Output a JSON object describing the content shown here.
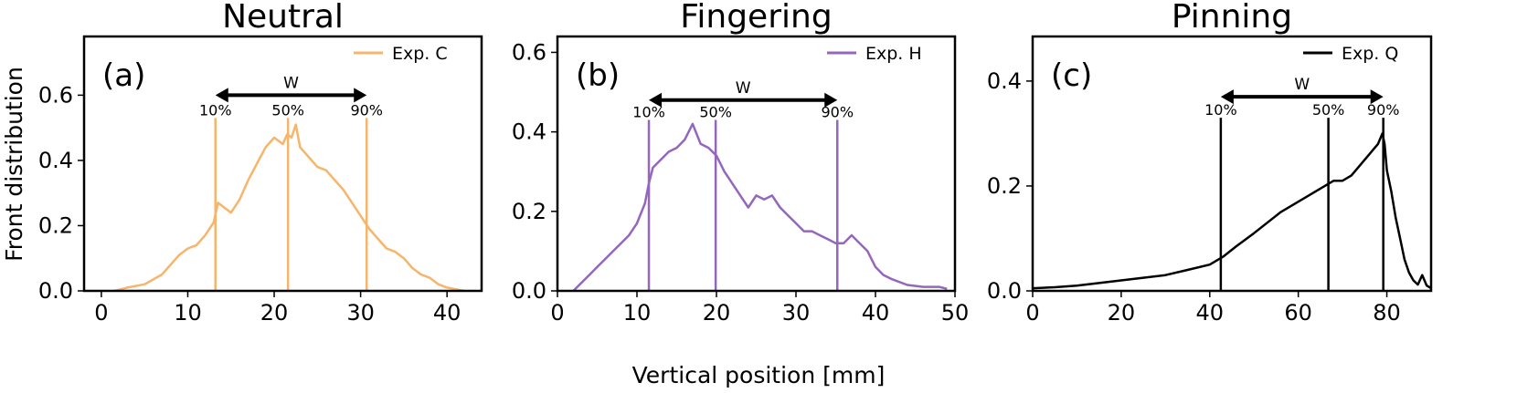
{
  "figure": {
    "ylabel": "Front distribution",
    "xlabel": "Vertical position [mm]"
  },
  "chart_data": [
    {
      "type": "line",
      "title": "Neutral",
      "panel_label": "(a)",
      "xlim": [
        -2,
        44
      ],
      "ylim": [
        0,
        0.78
      ],
      "xticks": [
        "0",
        "10",
        "20",
        "30",
        "40"
      ],
      "xtick_values": [
        0,
        10,
        20,
        30,
        40
      ],
      "yticks": [
        "0.0",
        "0.2",
        "0.4",
        "0.6"
      ],
      "ytick_values": [
        0,
        0.2,
        0.4,
        0.6
      ],
      "series": [
        {
          "name": "Exp. C",
          "color": "#f7b56b",
          "x": [
            1.5,
            3,
            5,
            7,
            8,
            9,
            10,
            11,
            12,
            13,
            13.5,
            14,
            15,
            16,
            17,
            18,
            19,
            20,
            21,
            21.5,
            22,
            22.5,
            23,
            24,
            25,
            26,
            27,
            28,
            29,
            30,
            31,
            32,
            33,
            34,
            35,
            36,
            37,
            38,
            39,
            40,
            41,
            42
          ],
          "y": [
            0.0,
            0.01,
            0.02,
            0.05,
            0.08,
            0.11,
            0.13,
            0.14,
            0.17,
            0.21,
            0.27,
            0.26,
            0.24,
            0.28,
            0.34,
            0.39,
            0.44,
            0.47,
            0.45,
            0.48,
            0.47,
            0.51,
            0.44,
            0.41,
            0.38,
            0.37,
            0.34,
            0.31,
            0.27,
            0.23,
            0.19,
            0.16,
            0.13,
            0.12,
            0.1,
            0.07,
            0.05,
            0.04,
            0.02,
            0.01,
            0.005,
            0.0
          ]
        }
      ],
      "markers": [
        {
          "label": "10%",
          "x": 13.2
        },
        {
          "label": "50%",
          "x": 21.6
        },
        {
          "label": "90%",
          "x": 30.7
        }
      ],
      "width_label": "W",
      "arrow_y": 0.6,
      "marker_top": 0.53
    },
    {
      "type": "line",
      "title": "Fingering",
      "panel_label": "(b)",
      "xlim": [
        0,
        50
      ],
      "ylim": [
        0,
        0.64
      ],
      "xticks": [
        "0",
        "10",
        "20",
        "30",
        "40",
        "50"
      ],
      "xtick_values": [
        0,
        10,
        20,
        30,
        40,
        50
      ],
      "yticks": [
        "0.0",
        "0.2",
        "0.4",
        "0.6"
      ],
      "ytick_values": [
        0,
        0.2,
        0.4,
        0.6
      ],
      "series": [
        {
          "name": "Exp. H",
          "color": "#9467bd",
          "x": [
            2,
            3,
            4,
            5,
            6,
            7,
            8,
            9,
            10,
            11,
            11.5,
            12,
            13,
            14,
            15,
            16,
            17,
            18,
            19,
            20,
            21,
            22,
            23,
            24,
            25,
            26,
            27,
            28,
            29,
            30,
            31,
            32,
            33,
            34,
            35,
            36,
            37,
            38,
            39,
            40,
            41,
            42,
            44,
            46,
            48,
            49
          ],
          "y": [
            0.0,
            0.02,
            0.04,
            0.06,
            0.08,
            0.1,
            0.12,
            0.14,
            0.17,
            0.22,
            0.27,
            0.31,
            0.33,
            0.35,
            0.36,
            0.38,
            0.42,
            0.37,
            0.36,
            0.34,
            0.3,
            0.27,
            0.24,
            0.21,
            0.24,
            0.23,
            0.24,
            0.21,
            0.19,
            0.17,
            0.15,
            0.15,
            0.14,
            0.13,
            0.12,
            0.12,
            0.14,
            0.12,
            0.1,
            0.06,
            0.04,
            0.03,
            0.015,
            0.01,
            0.01,
            0.005
          ]
        }
      ],
      "markers": [
        {
          "label": "10%",
          "x": 11.5
        },
        {
          "label": "50%",
          "x": 19.9
        },
        {
          "label": "90%",
          "x": 35.2
        }
      ],
      "width_label": "W",
      "arrow_y": 0.48,
      "marker_top": 0.43
    },
    {
      "type": "line",
      "title": "Pinning",
      "panel_label": "(c)",
      "xlim": [
        0,
        90
      ],
      "ylim": [
        0,
        0.485
      ],
      "xticks": [
        "0",
        "20",
        "40",
        "60",
        "80"
      ],
      "xtick_values": [
        0,
        20,
        40,
        60,
        80
      ],
      "yticks": [
        "0.0",
        "0.2",
        "0.4"
      ],
      "ytick_values": [
        0,
        0.2,
        0.4
      ],
      "series": [
        {
          "name": "Exp. Q",
          "color": "#000000",
          "x": [
            0,
            5,
            10,
            15,
            20,
            25,
            30,
            35,
            40,
            43,
            46,
            50,
            53,
            56,
            60,
            63,
            66,
            68,
            70,
            72,
            74,
            76,
            77,
            78,
            79,
            79.5,
            80,
            81,
            82,
            83,
            84,
            85,
            86,
            87,
            88,
            89,
            90
          ],
          "y": [
            0.005,
            0.007,
            0.01,
            0.015,
            0.02,
            0.025,
            0.03,
            0.04,
            0.05,
            0.065,
            0.085,
            0.11,
            0.13,
            0.15,
            0.17,
            0.185,
            0.2,
            0.21,
            0.21,
            0.22,
            0.24,
            0.26,
            0.27,
            0.28,
            0.3,
            0.28,
            0.23,
            0.19,
            0.14,
            0.1,
            0.06,
            0.035,
            0.02,
            0.012,
            0.03,
            0.01,
            0.005
          ]
        }
      ],
      "markers": [
        {
          "label": "10%",
          "x": 42.5
        },
        {
          "label": "50%",
          "x": 66.8
        },
        {
          "label": "90%",
          "x": 79.2
        }
      ],
      "width_label": "W",
      "arrow_y": 0.37,
      "marker_top": 0.33
    }
  ]
}
